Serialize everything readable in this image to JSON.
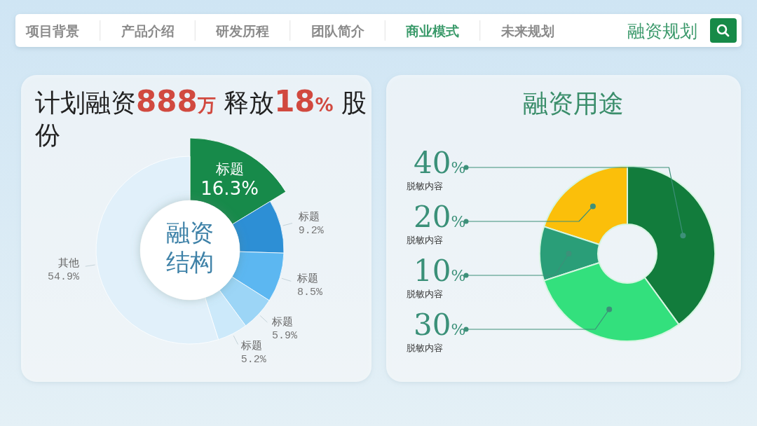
{
  "chart_data": [
    {
      "type": "other",
      "title": "融资规划",
      "categories": [
        "项目背景",
        "产品介绍",
        "研发历程",
        "团队简介",
        "商业模式",
        "未来规划"
      ]
    },
    {
      "type": "donut",
      "title": "计划融资888万 释放18% 股份",
      "categories": [
        "标题",
        "标题",
        "标题",
        "标题",
        "标题",
        "其他"
      ],
      "values": [
        16.3,
        9.2,
        8.5,
        5.9,
        5.2,
        54.9
      ],
      "colors": [
        "#178a4a",
        "#2d8fd5",
        "#5cb7f1",
        "#9cd5f6",
        "#cce9fa",
        "#e1f0fa"
      ],
      "value_labels": [
        "16.3%",
        "9.2%",
        "8.5%",
        "5.9%",
        "5.2%",
        "54.9%"
      ],
      "annotations": [
        "融资结构"
      ]
    },
    {
      "type": "donut",
      "title": "融资用途",
      "categories": [
        "脱敏内容",
        "脱敏内容",
        "脱敏内容",
        "脱敏内容"
      ],
      "values": [
        40,
        20,
        10,
        30
      ],
      "colors": [
        "#127c3c",
        "#fbbf0a",
        "#2a9e78",
        "#33e07d"
      ],
      "value_labels": [
        "40%",
        "20%",
        "10%",
        "30%"
      ]
    }
  ]
}
